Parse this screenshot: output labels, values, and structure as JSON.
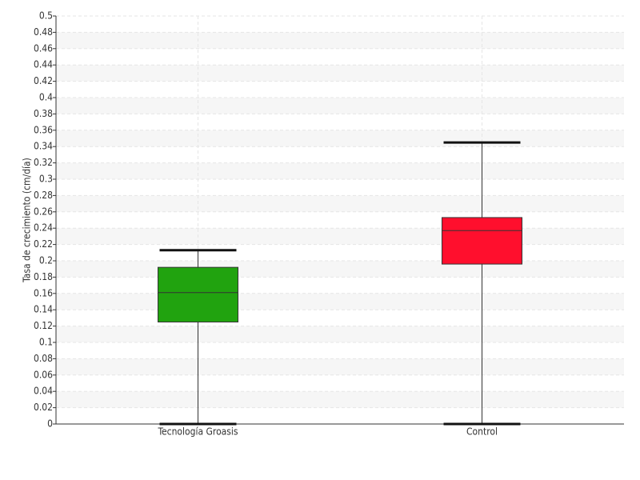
{
  "chart_data": {
    "type": "box",
    "ylabel": "Tasa de crecimiento (cm/día)",
    "categories": [
      "Tecnología Groasis",
      "Control"
    ],
    "boxes": [
      {
        "color": "#21a30f",
        "low": 0,
        "q1": 0.125,
        "median": 0.161,
        "q3": 0.192,
        "high": 0.213
      },
      {
        "color": "#ff0f2d",
        "low": 0,
        "q1": 0.196,
        "median": 0.237,
        "q3": 0.253,
        "high": 0.345
      }
    ],
    "ylim": [
      0,
      0.5
    ],
    "yticks": [
      0,
      0.02,
      0.04,
      0.06,
      0.08,
      0.1,
      0.12,
      0.14,
      0.16,
      0.18,
      0.2,
      0.22,
      0.24,
      0.26,
      0.28,
      0.3,
      0.32,
      0.34,
      0.36,
      0.38,
      0.4,
      0.42,
      0.44,
      0.46,
      0.48,
      0.5
    ],
    "grid": true
  }
}
